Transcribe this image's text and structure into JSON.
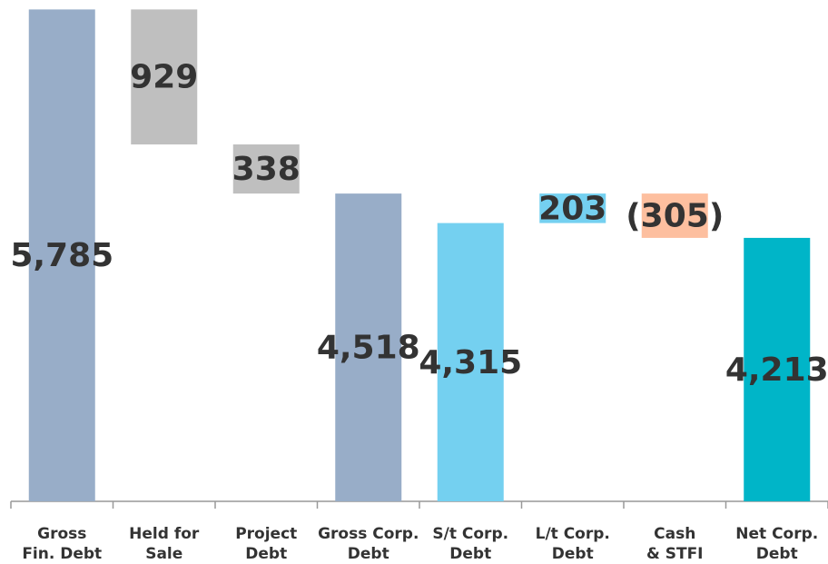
{
  "chart_data": {
    "type": "waterfall",
    "categories": [
      [
        "Gross",
        "Fin. Debt"
      ],
      [
        "Held for",
        "Sale"
      ],
      [
        "Project",
        "Debt"
      ],
      [
        "Gross Corp.",
        "Debt"
      ],
      [
        "S/t Corp.",
        "Debt"
      ],
      [
        "L/t Corp.",
        "Debt"
      ],
      [
        "Cash",
        "& STFI"
      ],
      [
        "Net Corp.",
        "Debt"
      ]
    ],
    "values": [
      5785,
      -929,
      -338,
      4518,
      4315,
      203,
      -305,
      4213
    ],
    "value_labels": [
      "5,785",
      "929",
      "338",
      "4,518",
      "4,315",
      "203",
      "(305)",
      "4,213"
    ],
    "totals": [
      true,
      false,
      false,
      true,
      true,
      false,
      false,
      true
    ],
    "colors": [
      "#98adc8",
      "#bfbfbf",
      "#bfbfbf",
      "#98adc8",
      "#74d0f0",
      "#74d0f0",
      "#fdbf9f",
      "#00b5c8"
    ],
    "ylim": [
      2400,
      5800
    ]
  }
}
